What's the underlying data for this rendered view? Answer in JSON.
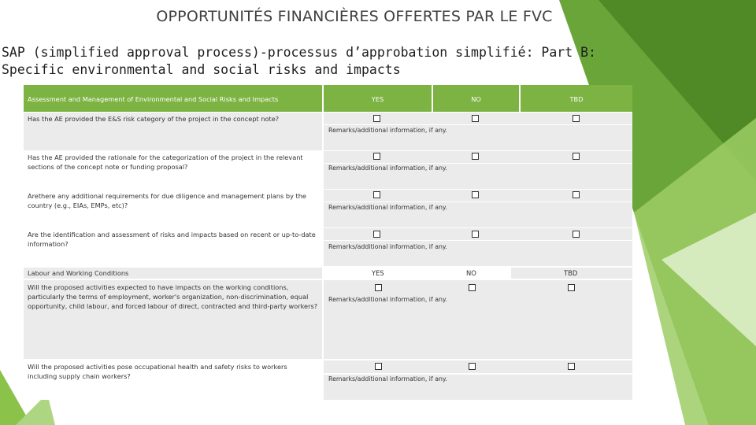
{
  "title": "OPPORTUNITÉS FINANCIÈRES OFFERTES PAR LE FVC",
  "subtitle": "SAP (simplified approval process)-processus d’approbation simplifié: Part B: Specific environmental and social risks and impacts",
  "colors": {
    "header_green": "#7cb342",
    "row_grey": "#ebebeb",
    "facet_dark": "#5e9a2e",
    "facet_light": "#c5e1a5"
  },
  "table": {
    "header": {
      "col1": "Assessment and Management of Environmental and Social Risks and Impacts",
      "yes": "YES",
      "no": "NO",
      "tbd": "TBD"
    },
    "remark_label": "Remarks/additional information, if any.",
    "rows": [
      {
        "question": "Has the AE provided the E&S risk category of the project in the concept note?"
      },
      {
        "question": "Has the AE provided the rationale for the categorization of the project in the relevant sections of the concept note or funding proposal?"
      },
      {
        "question": "Arethere any additional requirements for due diligence and management plans by the country (e.g., EIAs, EMPs, etc)?"
      },
      {
        "question": "Are the identification and assessment of risks and impacts based on recent or up-to-date information?"
      }
    ],
    "section2": {
      "title": "Labour and Working Conditions",
      "yes": "YES",
      "no": "NO",
      "tbd": "TBD",
      "rows": [
        {
          "question": "Will the proposed activities expected to have impacts on the working conditions, particularly the terms of employment, worker's organization, non-discrimination, equal opportunity, child labour, and forced labour of direct, contracted and third-party workers?"
        },
        {
          "question": "Will the proposed activities pose occupational health and safety risks to workers including supply chain workers?"
        }
      ]
    }
  }
}
